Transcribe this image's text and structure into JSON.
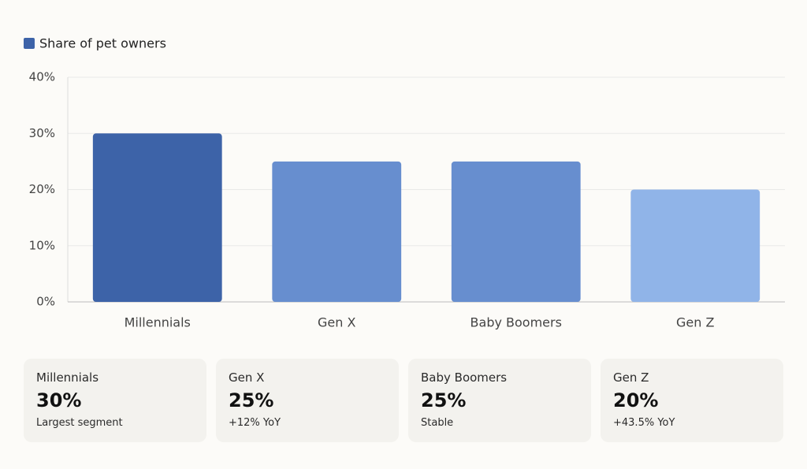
{
  "chart_data": {
    "type": "bar",
    "categories": [
      "Millennials",
      "Gen X",
      "Baby Boomers",
      "Gen Z"
    ],
    "series": [
      {
        "name": "Share of pet owners",
        "color": "#3d63a8",
        "values": [
          30,
          25,
          25,
          20
        ],
        "colors": [
          "#3d63a8",
          "#678ecf",
          "#678ecf",
          "#90b4e8"
        ]
      }
    ],
    "ylim": [
      0,
      40
    ],
    "yticks": [
      {
        "value": 0,
        "label": "0%"
      },
      {
        "value": 10,
        "label": "10%"
      },
      {
        "value": 20,
        "label": "20%"
      },
      {
        "value": 30,
        "label": "30%"
      },
      {
        "value": 40,
        "label": "40%"
      }
    ],
    "grid": true,
    "legend": "top-left"
  },
  "cards": [
    {
      "title": "Millennials",
      "value": "30%",
      "note": "Largest segment"
    },
    {
      "title": "Gen X",
      "value": "25%",
      "note": "+12% YoY"
    },
    {
      "title": "Baby Boomers",
      "value": "25%",
      "note": "Stable"
    },
    {
      "title": "Gen Z",
      "value": "20%",
      "note": "+43.5% YoY"
    }
  ]
}
